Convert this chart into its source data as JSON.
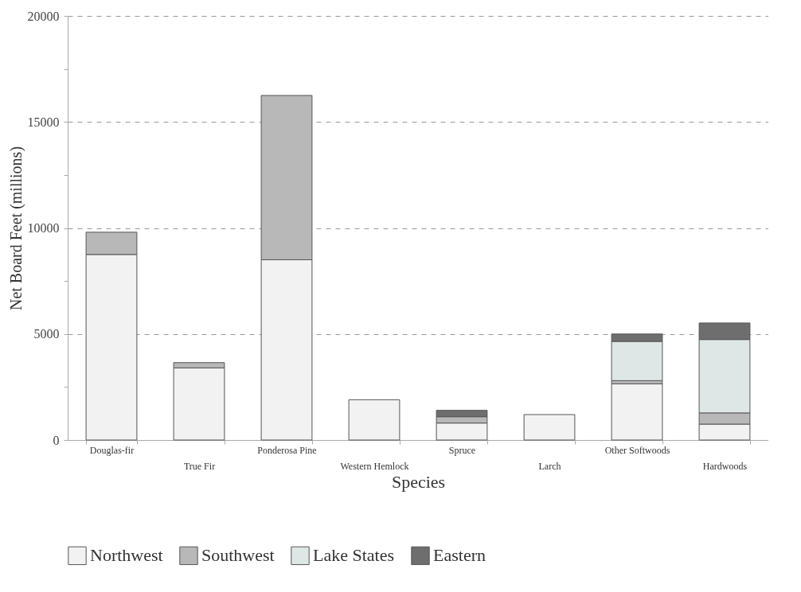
{
  "chart_data": {
    "type": "bar",
    "stacked": true,
    "xlabel": "Species",
    "ylabel": "Net Board Feet (millions)",
    "categories": [
      "Douglas-fir",
      "True Fir",
      "Ponderosa Pine",
      "Western  Hemlock",
      "Spruce",
      "Larch",
      "Other Softwoods",
      "Hardwoods"
    ],
    "series": [
      {
        "name": "Northwest",
        "color": "#f2f2f2",
        "values": [
          8750,
          3400,
          8500,
          1900,
          800,
          1200,
          2650,
          750
        ]
      },
      {
        "name": "Southwest",
        "color": "#b8b8b8",
        "values": [
          1050,
          250,
          7750,
          0,
          300,
          0,
          150,
          530
        ]
      },
      {
        "name": "Lake States",
        "color": "#dfe6e6",
        "values": [
          0,
          0,
          0,
          0,
          0,
          0,
          1850,
          3460
        ]
      },
      {
        "name": "Eastern",
        "color": "#6e6e6e",
        "values": [
          0,
          0,
          0,
          0,
          300,
          0,
          350,
          780
        ]
      }
    ],
    "ylim": [
      0,
      20000
    ],
    "yticks": [
      0,
      {
        "value": 2500,
        "label": null
      },
      5000,
      {
        "value": 7500,
        "label": null
      },
      10000,
      {
        "value": 12500,
        "label": null
      },
      15000,
      {
        "value": 17500,
        "label": null
      },
      20000
    ],
    "grid": "y",
    "legend": "bottom"
  }
}
